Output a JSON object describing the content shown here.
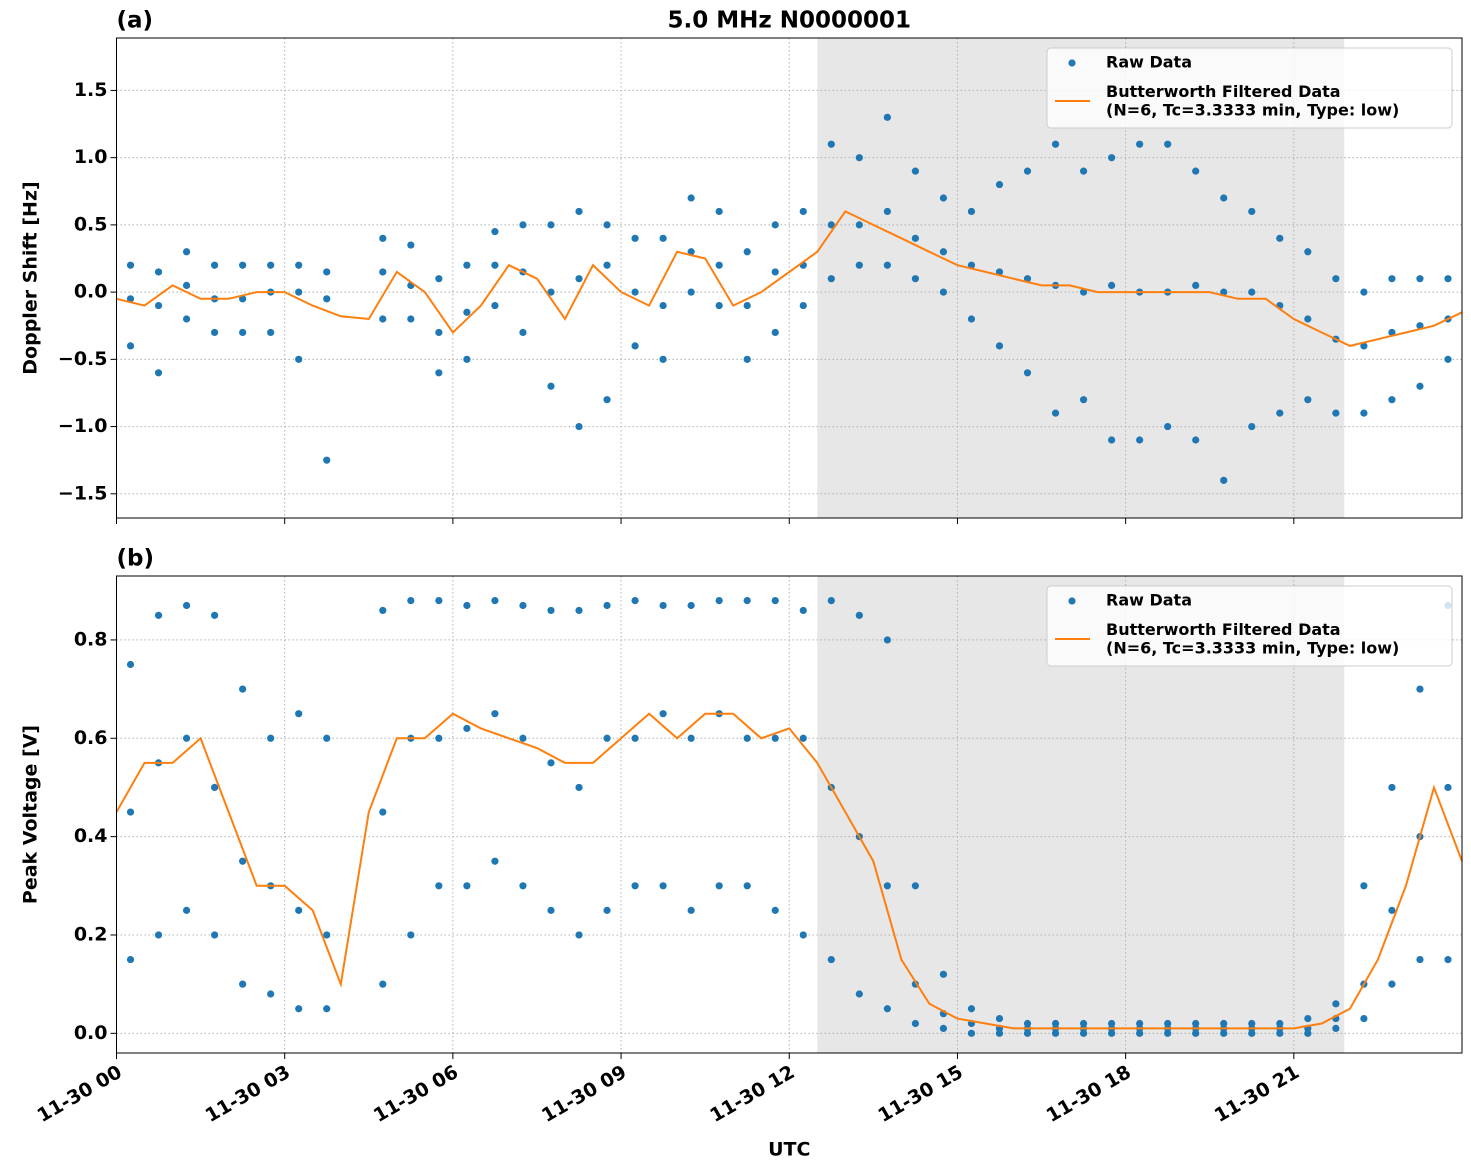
{
  "chart_data": [
    {
      "type": "scatter",
      "title": "5.0 MHz N0000001",
      "panel_label": "(a)",
      "ylabel": "Doppler Shift [Hz]",
      "xlim": [
        0,
        24
      ],
      "xticks": [
        0,
        3,
        6,
        9,
        12,
        15,
        18,
        21
      ],
      "xtick_labels": false,
      "ylim": [
        -1.68,
        1.89
      ],
      "yticks": [
        {
          "value": -1.5,
          "label": "−1.5"
        },
        {
          "value": -1.0,
          "label": "−1.0"
        },
        {
          "value": -0.5,
          "label": "−0.5"
        },
        {
          "value": 0,
          "label": "0.0"
        },
        {
          "value": 0.5,
          "label": "0.5"
        },
        {
          "value": 1.0,
          "label": "1.0"
        },
        {
          "value": 1.5,
          "label": "1.5"
        }
      ],
      "grid": true,
      "legend": "upper right",
      "shade": [
        12.5,
        21.9
      ],
      "series": [
        {
          "name": "Raw Data",
          "type": "scatter",
          "color": "#1f77b4",
          "x": [
            0.25,
            0.25,
            0.25,
            0.75,
            0.75,
            0.75,
            1.25,
            1.25,
            1.25,
            1.75,
            1.75,
            1.75,
            2.25,
            2.25,
            2.25,
            2.75,
            2.75,
            2.75,
            3.25,
            3.25,
            3.25,
            3.75,
            3.75,
            3.75,
            4.75,
            4.75,
            4.75,
            5.25,
            5.25,
            5.25,
            5.75,
            5.75,
            5.75,
            6.25,
            6.25,
            6.25,
            6.75,
            6.75,
            6.75,
            7.25,
            7.25,
            7.25,
            7.75,
            7.75,
            7.75,
            8.25,
            8.25,
            8.25,
            8.75,
            8.75,
            8.75,
            9.25,
            9.25,
            9.25,
            9.75,
            9.75,
            9.75,
            10.25,
            10.25,
            10.25,
            10.75,
            10.75,
            10.75,
            11.25,
            11.25,
            11.25,
            11.75,
            11.75,
            11.75,
            12.25,
            12.25,
            12.25,
            12.75,
            12.75,
            12.75,
            13.25,
            13.25,
            13.25,
            13.75,
            13.75,
            13.75,
            14.25,
            14.25,
            14.25,
            14.75,
            14.75,
            14.75,
            15.25,
            15.25,
            15.25,
            15.75,
            15.75,
            15.75,
            16.25,
            16.25,
            16.25,
            16.75,
            16.75,
            16.75,
            17.25,
            17.25,
            17.25,
            17.75,
            17.75,
            17.75,
            18.25,
            18.25,
            18.25,
            18.75,
            18.75,
            18.75,
            19.25,
            19.25,
            19.25,
            19.75,
            19.75,
            19.75,
            20.25,
            20.25,
            20.25,
            20.75,
            20.75,
            20.75,
            21.25,
            21.25,
            21.25,
            21.75,
            21.75,
            21.75,
            22.25,
            22.25,
            22.25,
            22.75,
            22.75,
            22.75,
            23.25,
            23.25,
            23.25,
            23.75,
            23.75,
            23.75
          ],
          "values": [
            0.2,
            -0.05,
            -0.4,
            0.15,
            -0.1,
            -0.6,
            0.3,
            0.05,
            -0.2,
            0.2,
            -0.05,
            -0.3,
            0.2,
            -0.05,
            -0.3,
            0.2,
            0.0,
            -0.3,
            0.2,
            0.0,
            -0.5,
            0.15,
            -0.05,
            -1.25,
            0.4,
            0.15,
            -0.2,
            0.35,
            0.05,
            -0.2,
            0.1,
            -0.3,
            -0.6,
            0.2,
            -0.15,
            -0.5,
            0.45,
            0.2,
            -0.1,
            0.5,
            0.15,
            -0.3,
            0.5,
            0.0,
            -0.7,
            0.6,
            0.1,
            -1.0,
            0.5,
            0.2,
            -0.8,
            0.4,
            0.0,
            -0.4,
            0.4,
            -0.1,
            -0.5,
            0.7,
            0.3,
            0.0,
            0.6,
            0.2,
            -0.1,
            0.3,
            -0.1,
            -0.5,
            0.5,
            0.15,
            -0.3,
            0.6,
            0.2,
            -0.1,
            1.1,
            0.5,
            0.1,
            1.0,
            0.5,
            0.2,
            1.3,
            0.6,
            0.2,
            0.9,
            0.4,
            0.1,
            0.7,
            0.3,
            0.0,
            0.6,
            0.2,
            -0.2,
            0.8,
            0.15,
            -0.4,
            0.9,
            0.1,
            -0.6,
            1.1,
            0.05,
            -0.9,
            0.9,
            0.0,
            -0.8,
            1.0,
            0.05,
            -1.1,
            1.1,
            0.0,
            -1.1,
            1.1,
            0.0,
            -1.0,
            0.9,
            0.05,
            -1.1,
            0.7,
            0.0,
            -1.4,
            0.6,
            0.0,
            -1.0,
            0.4,
            -0.1,
            -0.9,
            0.3,
            -0.2,
            -0.8,
            0.1,
            -0.35,
            -0.9,
            0.0,
            -0.4,
            -0.9,
            0.1,
            -0.3,
            -0.8,
            0.1,
            -0.25,
            -0.7,
            0.1,
            -0.2,
            -0.5
          ]
        },
        {
          "name": "Butterworth Filtered Data\n(N=6, Tc=3.3333 min, Type: low)",
          "type": "line",
          "color": "#ff7f0e",
          "x": [
            0,
            0.5,
            1,
            1.5,
            2,
            2.5,
            3,
            3.5,
            4,
            4.5,
            5,
            5.5,
            6,
            6.5,
            7,
            7.5,
            8,
            8.5,
            9,
            9.5,
            10,
            10.5,
            11,
            11.5,
            12,
            12.5,
            13,
            13.5,
            14,
            14.5,
            15,
            15.5,
            16,
            16.5,
            17,
            17.5,
            18,
            18.5,
            19,
            19.5,
            20,
            20.5,
            21,
            21.5,
            22,
            22.5,
            23,
            23.5,
            24
          ],
          "values": [
            -0.05,
            -0.1,
            0.05,
            -0.05,
            -0.05,
            0.0,
            0.0,
            -0.1,
            -0.18,
            -0.2,
            0.15,
            0.0,
            -0.3,
            -0.1,
            0.2,
            0.1,
            -0.2,
            0.2,
            0.0,
            -0.1,
            0.3,
            0.25,
            -0.1,
            0.0,
            0.15,
            0.3,
            0.6,
            0.5,
            0.4,
            0.3,
            0.2,
            0.15,
            0.1,
            0.05,
            0.05,
            0.0,
            0.0,
            0.0,
            0.0,
            0.0,
            -0.05,
            -0.05,
            -0.2,
            -0.3,
            -0.4,
            -0.35,
            -0.3,
            -0.25,
            -0.15
          ]
        }
      ]
    },
    {
      "type": "scatter",
      "panel_label": "(b)",
      "ylabel": "Peak Voltage [V]",
      "xlabel": "UTC",
      "xlim": [
        0,
        24
      ],
      "xticks": [
        {
          "value": 0,
          "label": "11-30 00"
        },
        {
          "value": 3,
          "label": "11-30 03"
        },
        {
          "value": 6,
          "label": "11-30 06"
        },
        {
          "value": 9,
          "label": "11-30 09"
        },
        {
          "value": 12,
          "label": "11-30 12"
        },
        {
          "value": 15,
          "label": "11-30 15"
        },
        {
          "value": 18,
          "label": "11-30 18"
        },
        {
          "value": 21,
          "label": "11-30 21"
        }
      ],
      "xtick_labels": true,
      "ylim": [
        -0.04,
        0.93
      ],
      "yticks": [
        {
          "value": 0,
          "label": "0.0"
        },
        {
          "value": 0.2,
          "label": "0.2"
        },
        {
          "value": 0.4,
          "label": "0.4"
        },
        {
          "value": 0.6,
          "label": "0.6"
        },
        {
          "value": 0.8,
          "label": "0.8"
        }
      ],
      "grid": true,
      "legend": "upper right",
      "shade": [
        12.5,
        21.9
      ],
      "series": [
        {
          "name": "Raw Data",
          "type": "scatter",
          "color": "#1f77b4",
          "x": [
            0.25,
            0.25,
            0.25,
            0.75,
            0.75,
            0.75,
            1.25,
            1.25,
            1.25,
            1.75,
            1.75,
            1.75,
            2.25,
            2.25,
            2.25,
            2.75,
            2.75,
            2.75,
            3.25,
            3.25,
            3.25,
            3.75,
            3.75,
            3.75,
            4.75,
            4.75,
            4.75,
            5.25,
            5.25,
            5.25,
            5.75,
            5.75,
            5.75,
            6.25,
            6.25,
            6.25,
            6.75,
            6.75,
            6.75,
            7.25,
            7.25,
            7.25,
            7.75,
            7.75,
            7.75,
            8.25,
            8.25,
            8.25,
            8.75,
            8.75,
            8.75,
            9.25,
            9.25,
            9.25,
            9.75,
            9.75,
            9.75,
            10.25,
            10.25,
            10.25,
            10.75,
            10.75,
            10.75,
            11.25,
            11.25,
            11.25,
            11.75,
            11.75,
            11.75,
            12.25,
            12.25,
            12.25,
            12.75,
            12.75,
            12.75,
            13.25,
            13.25,
            13.25,
            13.75,
            13.75,
            13.75,
            14.25,
            14.25,
            14.25,
            14.75,
            14.75,
            14.75,
            15.25,
            15.25,
            15.25,
            15.75,
            15.75,
            15.75,
            16.25,
            16.25,
            16.25,
            16.75,
            16.75,
            16.75,
            17.25,
            17.25,
            17.25,
            17.75,
            17.75,
            17.75,
            18.25,
            18.25,
            18.25,
            18.75,
            18.75,
            18.75,
            19.25,
            19.25,
            19.25,
            19.75,
            19.75,
            19.75,
            20.25,
            20.25,
            20.25,
            20.75,
            20.75,
            20.75,
            21.25,
            21.25,
            21.25,
            21.75,
            21.75,
            21.75,
            22.25,
            22.25,
            22.25,
            22.75,
            22.75,
            22.75,
            23.25,
            23.25,
            23.25,
            23.75,
            23.75,
            23.75
          ],
          "values": [
            0.75,
            0.45,
            0.15,
            0.85,
            0.55,
            0.2,
            0.87,
            0.6,
            0.25,
            0.85,
            0.5,
            0.2,
            0.7,
            0.35,
            0.1,
            0.6,
            0.3,
            0.08,
            0.65,
            0.25,
            0.05,
            0.6,
            0.2,
            0.05,
            0.86,
            0.45,
            0.1,
            0.88,
            0.6,
            0.2,
            0.88,
            0.6,
            0.3,
            0.87,
            0.62,
            0.3,
            0.88,
            0.65,
            0.35,
            0.87,
            0.6,
            0.3,
            0.86,
            0.55,
            0.25,
            0.86,
            0.5,
            0.2,
            0.87,
            0.6,
            0.25,
            0.88,
            0.6,
            0.3,
            0.87,
            0.65,
            0.3,
            0.87,
            0.6,
            0.25,
            0.88,
            0.65,
            0.3,
            0.88,
            0.6,
            0.3,
            0.88,
            0.6,
            0.25,
            0.86,
            0.6,
            0.2,
            0.88,
            0.5,
            0.15,
            0.85,
            0.4,
            0.08,
            0.8,
            0.3,
            0.05,
            0.3,
            0.1,
            0.02,
            0.12,
            0.04,
            0.01,
            0.05,
            0.02,
            0.0,
            0.03,
            0.01,
            0.0,
            0.02,
            0.01,
            0.0,
            0.02,
            0.01,
            0.0,
            0.02,
            0.01,
            0.0,
            0.02,
            0.01,
            0.0,
            0.02,
            0.01,
            0.0,
            0.02,
            0.01,
            0.0,
            0.02,
            0.01,
            0.0,
            0.02,
            0.01,
            0.0,
            0.02,
            0.01,
            0.0,
            0.02,
            0.01,
            0.0,
            0.03,
            0.01,
            0.0,
            0.06,
            0.03,
            0.01,
            0.3,
            0.1,
            0.03,
            0.5,
            0.25,
            0.1,
            0.7,
            0.4,
            0.15,
            0.87,
            0.5,
            0.15
          ]
        },
        {
          "name": "Butterworth Filtered Data\n(N=6, Tc=3.3333 min, Type: low)",
          "type": "line",
          "color": "#ff7f0e",
          "x": [
            0,
            0.5,
            1,
            1.5,
            2,
            2.5,
            3,
            3.5,
            4,
            4.5,
            5,
            5.5,
            6,
            6.5,
            7,
            7.5,
            8,
            8.5,
            9,
            9.5,
            10,
            10.5,
            11,
            11.5,
            12,
            12.5,
            13,
            13.5,
            14,
            14.5,
            15,
            15.5,
            16,
            16.5,
            17,
            17.5,
            18,
            18.5,
            19,
            19.5,
            20,
            20.5,
            21,
            21.5,
            22,
            22.5,
            23,
            23.5,
            24
          ],
          "values": [
            0.45,
            0.55,
            0.55,
            0.6,
            0.45,
            0.3,
            0.3,
            0.25,
            0.1,
            0.45,
            0.6,
            0.6,
            0.65,
            0.62,
            0.6,
            0.58,
            0.55,
            0.55,
            0.6,
            0.65,
            0.6,
            0.65,
            0.65,
            0.6,
            0.62,
            0.55,
            0.45,
            0.35,
            0.15,
            0.06,
            0.03,
            0.02,
            0.01,
            0.01,
            0.01,
            0.01,
            0.01,
            0.01,
            0.01,
            0.01,
            0.01,
            0.01,
            0.01,
            0.02,
            0.05,
            0.15,
            0.3,
            0.5,
            0.35
          ]
        }
      ]
    }
  ]
}
